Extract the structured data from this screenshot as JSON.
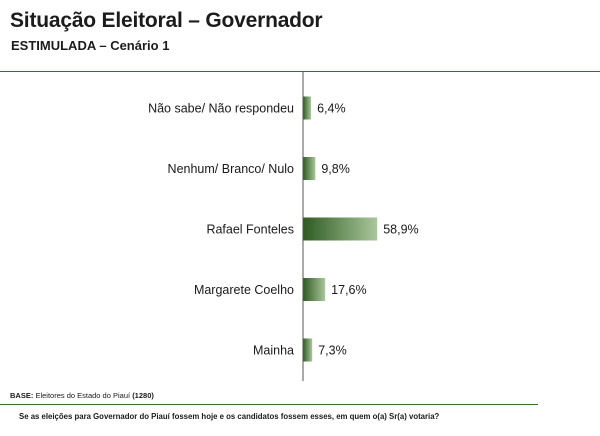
{
  "header": {
    "title": "Situação Eleitoral – Governador",
    "subtitle": "ESTIMULADA – Cenário 1"
  },
  "footer": {
    "base_label": "BASE:",
    "base_text": "Eleitores do Estado do Piauí",
    "base_count": "(1280)",
    "question": "Se as eleições para Governador do Piauí fossem hoje e os candidatos fossem esses, em quem o(a) Sr(a) votaria?"
  },
  "colors": {
    "bar_dark": "#2f5a22",
    "bar_light": "#a9c79b",
    "axis": "#555555",
    "rule": "#3e6b2c"
  },
  "chart_data": {
    "type": "bar",
    "orientation": "horizontal",
    "categories": [
      "Não sabe/ Não respondeu",
      "Nenhum/ Branco/ Nulo",
      "Rafael Fonteles",
      "Margarete Coelho",
      "Mainha"
    ],
    "values": [
      6.4,
      9.8,
      58.9,
      17.6,
      7.3
    ],
    "value_labels": [
      "6,4%",
      "9,8%",
      "58,9%",
      "17,6%",
      "7,3%"
    ],
    "xlim": [
      0,
      100
    ],
    "grid": false,
    "legend": "none"
  }
}
